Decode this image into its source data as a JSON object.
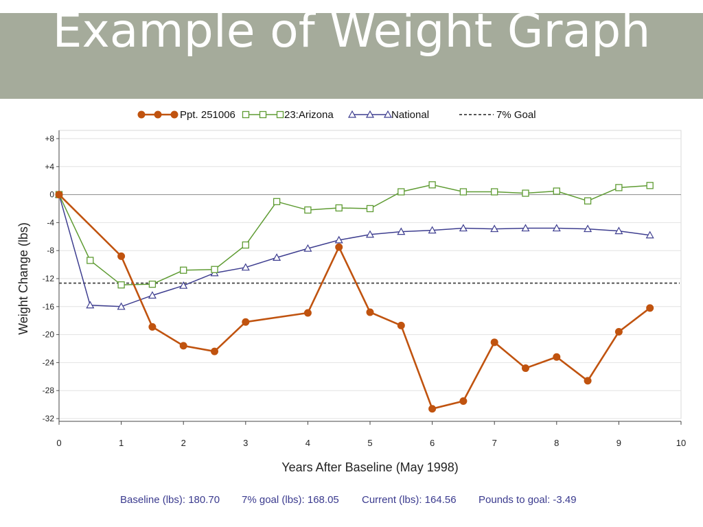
{
  "slide": {
    "title": "Example of Weight Graph"
  },
  "chart_data": {
    "type": "line",
    "xlabel": "Years After Baseline (May 1998)",
    "ylabel": "Weight Change (lbs)",
    "xlim": [
      0,
      10
    ],
    "ylim": [
      -32,
      8
    ],
    "x_ticks": [
      "0",
      "1",
      "2",
      "3",
      "4",
      "5",
      "6",
      "7",
      "8",
      "9",
      "10"
    ],
    "y_ticks": [
      "+8",
      "+4",
      "0",
      "-4",
      "-8",
      "-12",
      "-16",
      "-20",
      "-24",
      "-28",
      "-32"
    ],
    "grid": true,
    "legend_position": "top",
    "series": [
      {
        "name": "Ppt. 251006",
        "color": "#c0530f",
        "marker": "filled-circle",
        "x": [
          0,
          1,
          1.5,
          2,
          2.5,
          3,
          4,
          4.5,
          5,
          5.5,
          6,
          6.5,
          7,
          7.5,
          8,
          8.5,
          9,
          9.5
        ],
        "values": [
          0,
          -8.8,
          -18.9,
          -21.6,
          -22.4,
          -18.2,
          -16.9,
          -7.5,
          -16.8,
          -18.7,
          -30.6,
          -29.5,
          -21.1,
          -24.8,
          -23.2,
          -26.6,
          -19.6,
          -16.2
        ]
      },
      {
        "name": "23:Arizona",
        "color": "#5e9b32",
        "marker": "open-square",
        "x": [
          0,
          0.5,
          1,
          1.5,
          2,
          2.5,
          3,
          3.5,
          4,
          4.5,
          5,
          5.5,
          6,
          6.5,
          7,
          7.5,
          8,
          8.5,
          9,
          9.5
        ],
        "values": [
          0,
          -9.4,
          -12.9,
          -12.8,
          -10.8,
          -10.7,
          -7.2,
          -1.0,
          -2.2,
          -1.9,
          -2.0,
          0.4,
          1.4,
          0.4,
          0.4,
          0.2,
          0.5,
          -0.9,
          1.0,
          1.3
        ]
      },
      {
        "name": "National",
        "color": "#3d3d8f",
        "marker": "open-triangle",
        "x": [
          0,
          0.5,
          1,
          1.5,
          2,
          2.5,
          3,
          3.5,
          4,
          4.5,
          5,
          5.5,
          6,
          6.5,
          7,
          7.5,
          8,
          8.5,
          9,
          9.5
        ],
        "values": [
          0,
          -15.8,
          -16.0,
          -14.4,
          -13.0,
          -11.2,
          -10.4,
          -9.0,
          -7.7,
          -6.5,
          -5.7,
          -5.3,
          -5.1,
          -4.8,
          -4.9,
          -4.8,
          -4.8,
          -4.9,
          -5.2,
          -5.8
        ]
      }
    ],
    "goal_line": {
      "label": "7% Goal",
      "value": -12.65,
      "color": "#555555"
    }
  },
  "footer": {
    "baseline": "Baseline (lbs): 180.70",
    "goal": "7% goal (lbs): 168.05",
    "current": "Current (lbs): 164.56",
    "pounds_to_goal": "Pounds to goal: -3.49"
  }
}
